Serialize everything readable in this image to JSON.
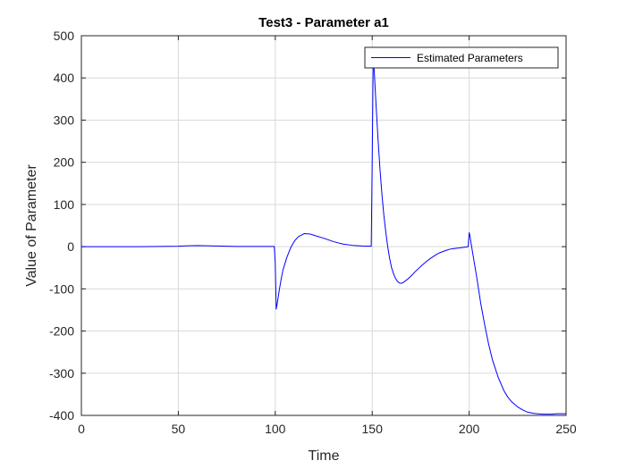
{
  "chart_data": {
    "type": "line",
    "title": "Test3 - Parameter a1",
    "xlabel": "Time",
    "ylabel": "Value of Parameter",
    "xlim": [
      0,
      250
    ],
    "ylim": [
      -400,
      500
    ],
    "xticks": [
      0,
      50,
      100,
      150,
      200,
      250
    ],
    "xtick_labels": [
      "0",
      "50",
      "100",
      "150",
      "200",
      "250"
    ],
    "yticks": [
      -400,
      -300,
      -200,
      -100,
      0,
      100,
      200,
      300,
      400,
      500
    ],
    "ytick_labels": [
      "-400",
      "-300",
      "-200",
      "-100",
      "0",
      "100",
      "200",
      "300",
      "400",
      "500"
    ],
    "grid": true,
    "legend_position": "top-right",
    "colors": {
      "series": "#0000ff",
      "grid": "#d9d9d9",
      "axes": "#262626"
    },
    "series": [
      {
        "name": "Estimated Parameters",
        "x": [
          0,
          10,
          20,
          30,
          40,
          50,
          52,
          55,
          60,
          65,
          70,
          75,
          80,
          90,
          99.5,
          100,
          100.5,
          101,
          102,
          103,
          104,
          106,
          108,
          110,
          112,
          115,
          118,
          120,
          125,
          130,
          135,
          140,
          145,
          149.5,
          150,
          150.5,
          151,
          152,
          153,
          154,
          155,
          156,
          157,
          158,
          159,
          160,
          161,
          162,
          163,
          164,
          165,
          166,
          168,
          170,
          172,
          175,
          178,
          180,
          183,
          185,
          188,
          190,
          193,
          195,
          198,
          199.5,
          200,
          200.3,
          200.6,
          201,
          202,
          204,
          206,
          208,
          210,
          212,
          215,
          218,
          220,
          222,
          225,
          228,
          230,
          233,
          235,
          238,
          240,
          243,
          245,
          248,
          250
        ],
        "y": [
          0,
          0,
          0,
          0,
          0.5,
          1,
          1.5,
          2,
          2.5,
          2,
          1.5,
          1,
          0.5,
          0.5,
          0.5,
          -40,
          -148,
          -135,
          -105,
          -78,
          -55,
          -25,
          -2,
          14,
          24,
          31,
          30,
          27,
          20,
          12,
          6,
          3,
          1.5,
          1,
          200,
          440,
          420,
          335,
          255,
          185,
          125,
          75,
          35,
          0,
          -28,
          -50,
          -64,
          -75,
          -82,
          -86,
          -87,
          -85,
          -78,
          -70,
          -60,
          -47,
          -35,
          -28,
          -19,
          -14,
          -9,
          -6,
          -4,
          -3,
          -1,
          0,
          33,
          28,
          20,
          8,
          -20,
          -75,
          -135,
          -185,
          -230,
          -268,
          -310,
          -342,
          -357,
          -368,
          -380,
          -388,
          -392,
          -395,
          -396,
          -397,
          -397,
          -397,
          -396,
          -396,
          -396
        ]
      }
    ]
  }
}
